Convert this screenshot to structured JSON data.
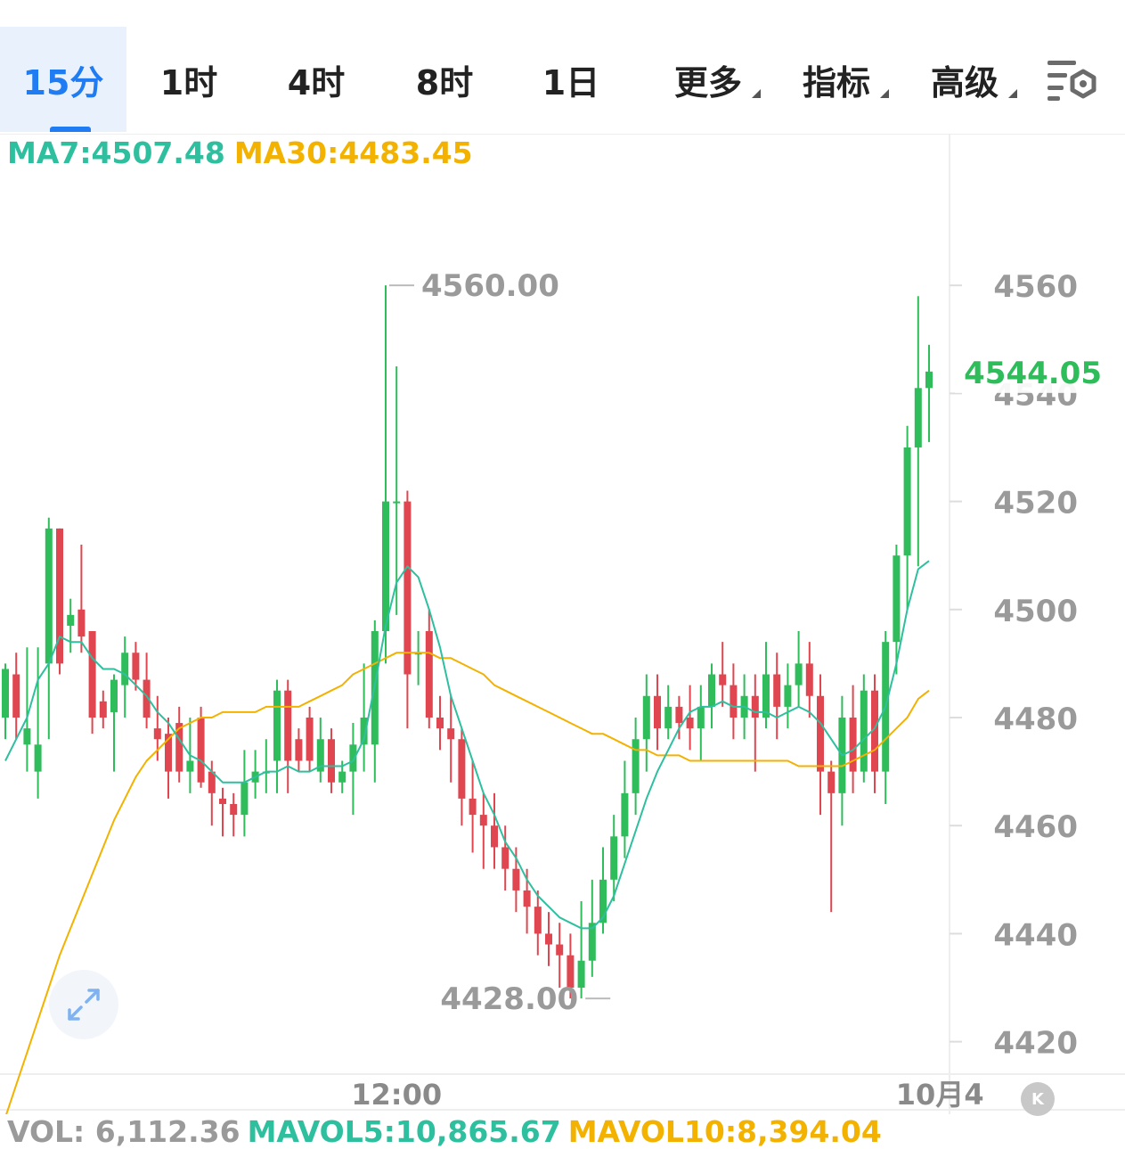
{
  "tabs": [
    {
      "label": "15分",
      "active": true,
      "caret": false
    },
    {
      "label": "1时",
      "active": false,
      "caret": false
    },
    {
      "label": "4时",
      "active": false,
      "caret": false
    },
    {
      "label": "8时",
      "active": false,
      "caret": false
    },
    {
      "label": "1日",
      "active": false,
      "caret": false
    },
    {
      "label": "更多",
      "active": false,
      "caret": true
    },
    {
      "label": "指标",
      "active": false,
      "caret": true
    },
    {
      "label": "高级",
      "active": false,
      "caret": true
    }
  ],
  "settings_icon": "chart-settings-icon",
  "legend": {
    "ma7": "MA7:4507.48",
    "ma30": "MA30:4483.45"
  },
  "volume": {
    "vol": "VOL: 6,112.36",
    "mavol5": "MAVOL5:10,865.67",
    "mavol10": "MAVOL10:8,394.04"
  },
  "expand_icon": "expand-arrows-icon",
  "k_badge": "K",
  "colors": {
    "up": "#2ebd5a",
    "down": "#e0464f",
    "ma7": "#2ebf9f",
    "ma30": "#f3b200",
    "accent": "#1f7cf2",
    "axis_text": "#9a9a9a"
  },
  "chart_data": {
    "type": "candlestick",
    "timeframe": "15分",
    "ylim": [
      4414,
      4579
    ],
    "y_ticks": [
      4560,
      4540,
      4520,
      4500,
      4480,
      4460,
      4440,
      4420
    ],
    "x_tick_labels": [
      {
        "index": 36,
        "label": "12:00"
      },
      {
        "index": 86,
        "label": "10月4"
      }
    ],
    "last_price": "4544.05",
    "high_label": {
      "index": 35,
      "label": "4560.00"
    },
    "low_label": {
      "index": 56,
      "label": "4428.00"
    },
    "candles": [
      [
        4480,
        4489,
        4476,
        4490
      ],
      [
        4488,
        4480,
        4476,
        4492
      ],
      [
        4475,
        4478,
        4470,
        4493
      ],
      [
        4470,
        4475,
        4465,
        4493
      ],
      [
        4490,
        4515,
        4476,
        4517
      ],
      [
        4515,
        4490,
        4488,
        4515
      ],
      [
        4497,
        4499,
        4492,
        4502
      ],
      [
        4500,
        4495,
        4492,
        4512
      ],
      [
        4496,
        4480,
        4477,
        4496
      ],
      [
        4483,
        4480,
        4478,
        4485
      ],
      [
        4481,
        4487,
        4470,
        4488
      ],
      [
        4486,
        4492,
        4480,
        4495
      ],
      [
        4492,
        4487,
        4485,
        4494
      ],
      [
        4487,
        4480,
        4478,
        4492
      ],
      [
        4478,
        4476,
        4472,
        4484
      ],
      [
        4477,
        4470,
        4465,
        4480
      ],
      [
        4479,
        4470,
        4468,
        4482
      ],
      [
        4470,
        4472,
        4466,
        4480
      ],
      [
        4480,
        4468,
        4467,
        4482
      ],
      [
        4470,
        4466,
        4460,
        4472
      ],
      [
        4465,
        4464,
        4458,
        4467
      ],
      [
        4464,
        4462,
        4458,
        4466
      ],
      [
        4462,
        4468,
        4458,
        4474
      ],
      [
        4468,
        4470,
        4465,
        4474
      ],
      [
        4470,
        4470,
        4466,
        4476
      ],
      [
        4472,
        4485,
        4466,
        4487
      ],
      [
        4485,
        4472,
        4466,
        4487
      ],
      [
        4476,
        4472,
        4470,
        4478
      ],
      [
        4480,
        4472,
        4470,
        4482
      ],
      [
        4470,
        4476,
        4468,
        4480
      ],
      [
        4476,
        4468,
        4466,
        4478
      ],
      [
        4468,
        4470,
        4466,
        4472
      ],
      [
        4470,
        4475,
        4462,
        4479
      ],
      [
        4475,
        4480,
        4470,
        4490
      ],
      [
        4475,
        4496,
        4468,
        4498
      ],
      [
        4496,
        4520,
        4490,
        4560
      ],
      [
        4520,
        4520,
        4499,
        4545
      ],
      [
        4520,
        4488,
        4478,
        4522
      ],
      [
        4492,
        4492,
        4486,
        4496
      ],
      [
        4496,
        4480,
        4478,
        4500
      ],
      [
        4480,
        4478,
        4474,
        4484
      ],
      [
        4478,
        4476,
        4468,
        4484
      ],
      [
        4476,
        4465,
        4460,
        4478
      ],
      [
        4465,
        4462,
        4455,
        4472
      ],
      [
        4462,
        4460,
        4452,
        4466
      ],
      [
        4460,
        4456,
        4452,
        4466
      ],
      [
        4456,
        4452,
        4448,
        4460
      ],
      [
        4452,
        4448,
        4444,
        4456
      ],
      [
        4448,
        4445,
        4440,
        4452
      ],
      [
        4445,
        4440,
        4436,
        4448
      ],
      [
        4440,
        4438,
        4434,
        4444
      ],
      [
        4438,
        4436,
        4430,
        4442
      ],
      [
        4436,
        4430,
        4428,
        4440
      ],
      [
        4430,
        4435,
        4428,
        4446
      ],
      [
        4435,
        4442,
        4432,
        4450
      ],
      [
        4442,
        4450,
        4440,
        4456
      ],
      [
        4450,
        4458,
        4446,
        4462
      ],
      [
        4458,
        4466,
        4454,
        4472
      ],
      [
        4466,
        4476,
        4462,
        4480
      ],
      [
        4476,
        4484,
        4470,
        4488
      ],
      [
        4484,
        4478,
        4474,
        4488
      ],
      [
        4478,
        4482,
        4476,
        4486
      ],
      [
        4482,
        4479,
        4476,
        4484
      ],
      [
        4480,
        4478,
        4474,
        4486
      ],
      [
        4478,
        4482,
        4472,
        4486
      ],
      [
        4482,
        4488,
        4478,
        4490
      ],
      [
        4488,
        4486,
        4482,
        4494
      ],
      [
        4486,
        4480,
        4476,
        4490
      ],
      [
        4480,
        4484,
        4476,
        4488
      ],
      [
        4484,
        4480,
        4470,
        4488
      ],
      [
        4480,
        4488,
        4478,
        4494
      ],
      [
        4488,
        4482,
        4476,
        4492
      ],
      [
        4482,
        4486,
        4478,
        4490
      ],
      [
        4486,
        4490,
        4482,
        4496
      ],
      [
        4490,
        4484,
        4480,
        4494
      ],
      [
        4484,
        4470,
        4462,
        4488
      ],
      [
        4470,
        4466,
        4444,
        4472
      ],
      [
        4466,
        4480,
        4460,
        4484
      ],
      [
        4480,
        4470,
        4466,
        4486
      ],
      [
        4470,
        4485,
        4468,
        4488
      ],
      [
        4485,
        4470,
        4466,
        4488
      ],
      [
        4470,
        4494,
        4464,
        4496
      ],
      [
        4494,
        4510,
        4488,
        4512
      ],
      [
        4510,
        4530,
        4500,
        4534
      ],
      [
        4530,
        4541,
        4508,
        4558
      ],
      [
        4541,
        4544.05,
        4531,
        4549
      ]
    ],
    "ma7": [
      4472,
      4476,
      4480,
      4487,
      4490,
      4495,
      4494,
      4494,
      4491,
      4489,
      4489,
      4488,
      4486,
      4484,
      4481,
      4479,
      4476,
      4473,
      4472,
      4470,
      4468,
      4468,
      4468,
      4469,
      4470,
      4470,
      4471,
      4470,
      4470,
      4471,
      4471,
      4471,
      4472,
      4476,
      4486,
      4497,
      4505,
      4508,
      4506,
      4500,
      4493,
      4484,
      4478,
      4472,
      4466,
      4462,
      4457,
      4454,
      4450,
      4447,
      4445,
      4443,
      4442,
      4441,
      4441,
      4443,
      4447,
      4453,
      4459,
      4465,
      4470,
      4474,
      4478,
      4481,
      4482,
      4482,
      4483,
      4482,
      4482,
      4481,
      4481,
      4480,
      4481,
      4482,
      4481,
      4479,
      4476,
      4473,
      4474,
      4476,
      4478,
      4482,
      4490,
      4500,
      4507.48,
      4509
    ],
    "ma30": [
      4406,
      4412,
      4418,
      4424,
      4430,
      4436,
      4441,
      4446,
      4451,
      4456,
      4461,
      4465,
      4469,
      4472,
      4474,
      4476,
      4478,
      4479,
      4480,
      4480,
      4481,
      4481,
      4481,
      4481,
      4482,
      4482,
      4482,
      4482,
      4483,
      4484,
      4485,
      4486,
      4488,
      4489,
      4490,
      4491,
      4492,
      4492,
      4492,
      4492,
      4491,
      4491,
      4490,
      4489,
      4488,
      4486,
      4485,
      4484,
      4483,
      4482,
      4481,
      4480,
      4479,
      4478,
      4477,
      4477,
      4476,
      4475,
      4474,
      4474,
      4473,
      4473,
      4473,
      4472,
      4472,
      4472,
      4472,
      4472,
      4472,
      4472,
      4472,
      4472,
      4472,
      4471,
      4471,
      4471,
      4471,
      4471,
      4472,
      4473,
      4474,
      4476,
      4478,
      4480,
      4483.45,
      4485
    ]
  }
}
